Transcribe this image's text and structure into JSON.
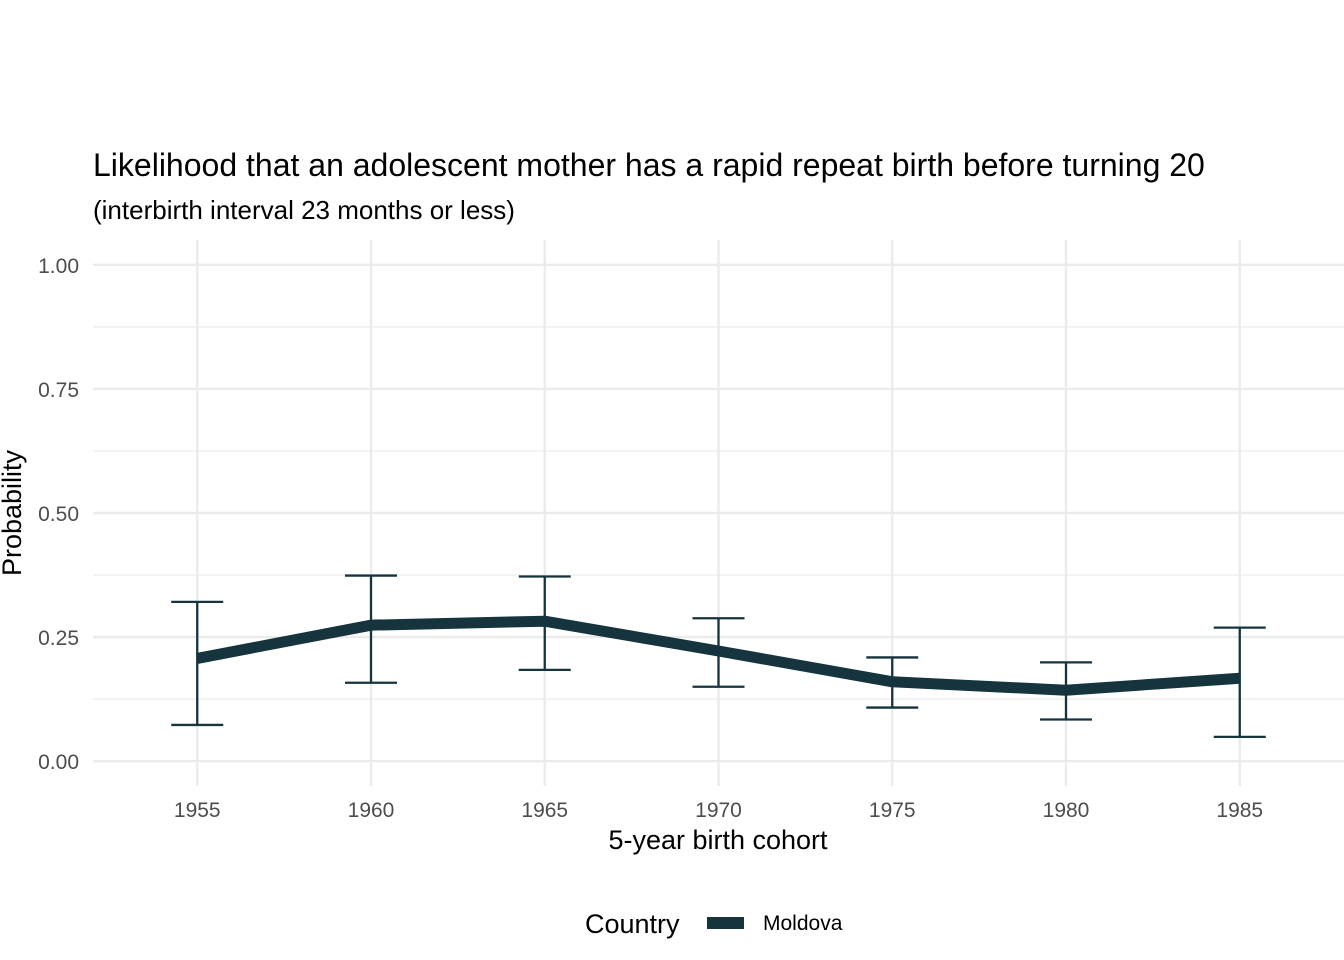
{
  "chart_data": {
    "type": "line",
    "title": "Likelihood that an adolescent mother has a rapid repeat birth before turning 20",
    "subtitle": "(interbirth interval 23 months or less)",
    "xlabel": "5-year birth cohort",
    "ylabel": "Probability",
    "x": [
      1955,
      1960,
      1965,
      1970,
      1975,
      1980,
      1985
    ],
    "x_tick_labels": [
      "1955",
      "1960",
      "1965",
      "1970",
      "1975",
      "1980",
      "1985"
    ],
    "y_ticks": [
      0,
      0.25,
      0.5,
      0.75,
      1.0
    ],
    "y_tick_labels": [
      "0.00",
      "0.25",
      "0.50",
      "0.75",
      "1.00"
    ],
    "xlim": [
      1952,
      1988
    ],
    "ylim": [
      -0.05,
      1.05
    ],
    "grid": true,
    "series": [
      {
        "name": "Moldova",
        "color": "#15343e",
        "values": [
          0.207,
          0.274,
          0.282,
          0.222,
          0.16,
          0.143,
          0.167
        ],
        "lower": [
          0.073,
          0.158,
          0.184,
          0.15,
          0.108,
          0.084,
          0.049
        ],
        "upper": [
          0.321,
          0.374,
          0.372,
          0.288,
          0.209,
          0.199,
          0.269
        ]
      }
    ],
    "legend": {
      "title": "Country",
      "placement": "bottom",
      "items": [
        "Moldova"
      ]
    }
  }
}
